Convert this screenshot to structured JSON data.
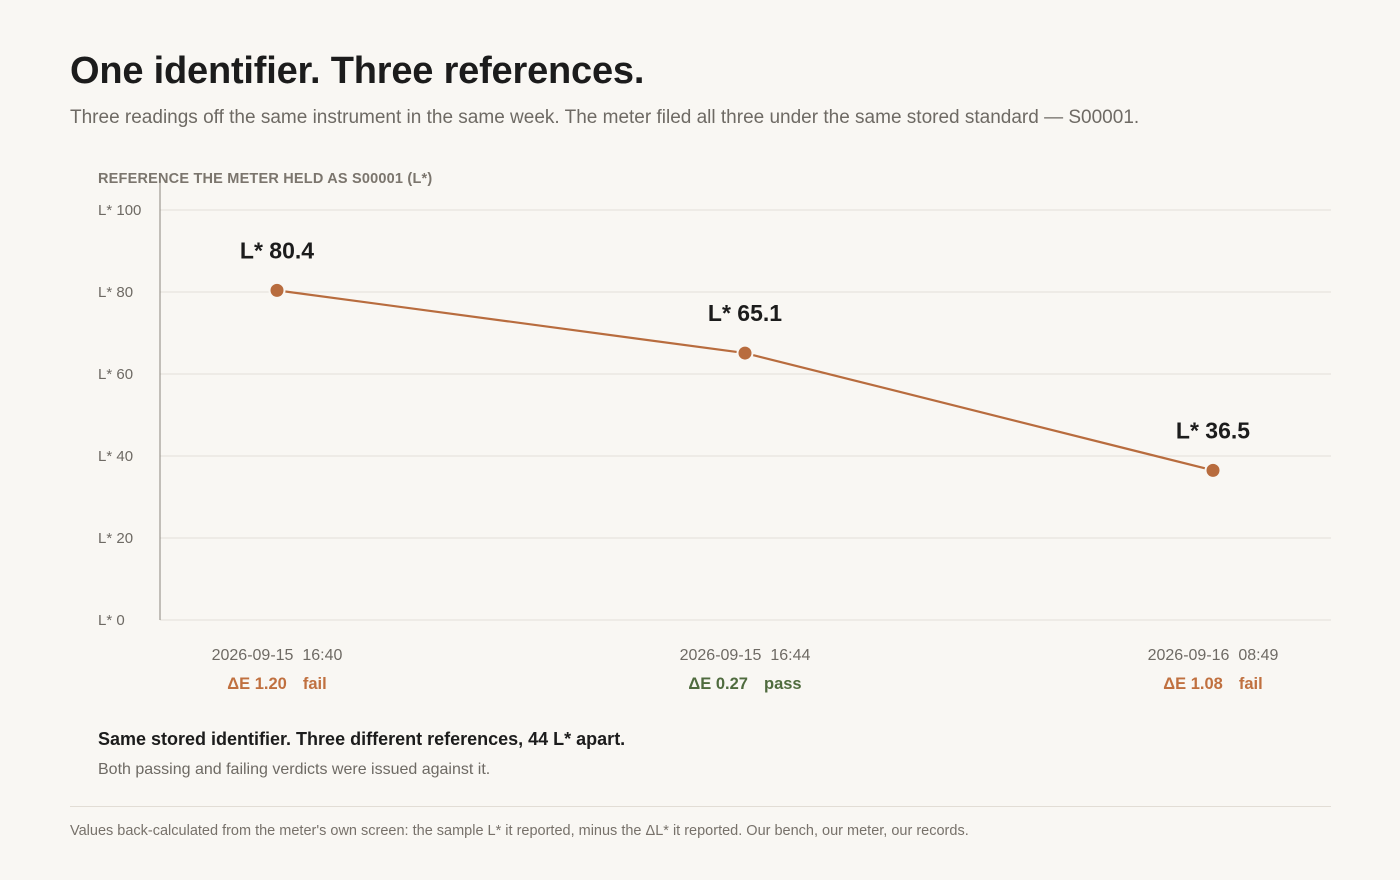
{
  "header": {
    "title": "One identifier. Three references.",
    "subtitle": "Three readings off the same instrument in the same week. The meter filed all three under the same stored standard — S00001."
  },
  "chart_data": {
    "type": "line",
    "title": "REFERENCE THE METER HELD AS S00001  (L*)",
    "ylim": [
      0,
      100
    ],
    "y_ticks": [
      {
        "value": 0,
        "label": "L* 0"
      },
      {
        "value": 20,
        "label": "L* 20"
      },
      {
        "value": 40,
        "label": "L* 40"
      },
      {
        "value": 60,
        "label": "L* 60"
      },
      {
        "value": 80,
        "label": "L* 80"
      },
      {
        "value": 100,
        "label": "L* 100"
      }
    ],
    "grid": true,
    "points": [
      {
        "x": "2026-09-15  16:40",
        "y": 80.4,
        "label": "L* 80.4",
        "delta_e": "ΔE 1.20",
        "verdict": "fail"
      },
      {
        "x": "2026-09-15  16:44",
        "y": 65.1,
        "label": "L* 65.1",
        "delta_e": "ΔE 0.27",
        "verdict": "pass"
      },
      {
        "x": "2026-09-16  08:49",
        "y": 36.5,
        "label": "L* 36.5",
        "delta_e": "ΔE 1.08",
        "verdict": "fail"
      }
    ],
    "colors": {
      "line": "#b86c3e",
      "fail": "#c0703f",
      "pass": "#4f6b3e",
      "grid": "#e3dfd8",
      "axis": "#8a847c"
    }
  },
  "summary": {
    "headline": "Same stored identifier. Three different references, 44 L* apart.",
    "note": "Both passing and failing verdicts were issued against it."
  },
  "footnote": "Values back-calculated from the meter's own screen: the sample L* it reported, minus the ΔL* it reported. Our bench, our meter, our records."
}
